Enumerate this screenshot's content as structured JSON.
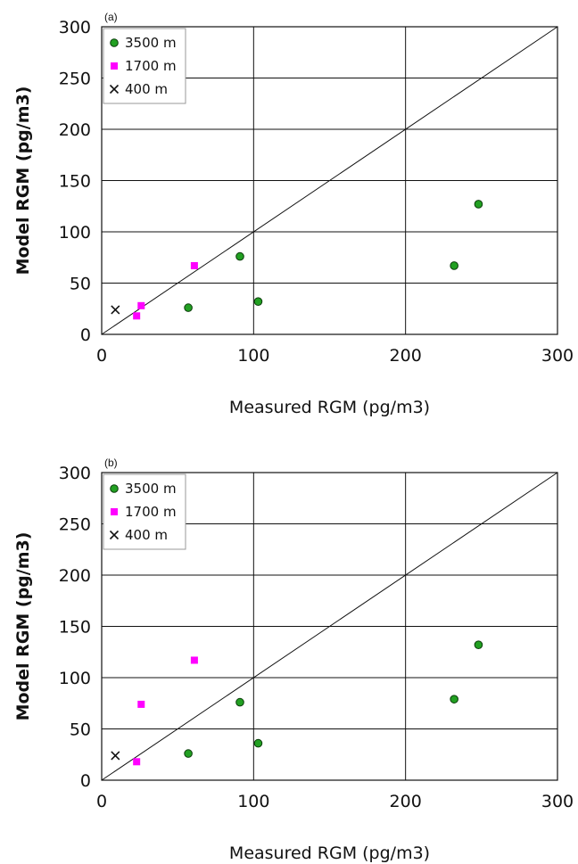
{
  "chart_data": [
    {
      "type": "scatter",
      "panel_label": "(a)",
      "xlabel": "Measured RGM (pg/m3)",
      "ylabel": "Model RGM (pg/m3)",
      "xlim": [
        0,
        300
      ],
      "ylim": [
        0,
        300
      ],
      "x_ticks": [
        "0",
        "100",
        "200",
        "300"
      ],
      "y_ticks": [
        "0",
        "50",
        "100",
        "150",
        "200",
        "250",
        "300"
      ],
      "grid": true,
      "reference_line": "1:1",
      "legend_position": "top-left",
      "series": [
        {
          "name": "3500 m",
          "marker": "circle",
          "color": "#22a022",
          "points": [
            [
              57,
              26
            ],
            [
              91,
              76
            ],
            [
              103,
              32
            ],
            [
              232,
              67
            ],
            [
              248,
              127
            ]
          ]
        },
        {
          "name": "1700 m",
          "marker": "square",
          "color": "#ff00ff",
          "points": [
            [
              23,
              18
            ],
            [
              26,
              28
            ],
            [
              61,
              67
            ]
          ]
        },
        {
          "name": "400 m",
          "marker": "x",
          "color": "#111111",
          "points": [
            [
              9,
              24
            ]
          ]
        }
      ]
    },
    {
      "type": "scatter",
      "panel_label": "(b)",
      "xlabel": "Measured RGM (pg/m3)",
      "ylabel": "Model RGM (pg/m3)",
      "xlim": [
        0,
        300
      ],
      "ylim": [
        0,
        300
      ],
      "x_ticks": [
        "0",
        "100",
        "200",
        "300"
      ],
      "y_ticks": [
        "0",
        "50",
        "100",
        "150",
        "200",
        "250",
        "300"
      ],
      "grid": true,
      "reference_line": "1:1",
      "legend_position": "top-left",
      "series": [
        {
          "name": "3500 m",
          "marker": "circle",
          "color": "#22a022",
          "points": [
            [
              57,
              26
            ],
            [
              91,
              76
            ],
            [
              103,
              36
            ],
            [
              232,
              79
            ],
            [
              248,
              132
            ]
          ]
        },
        {
          "name": "1700 m",
          "marker": "square",
          "color": "#ff00ff",
          "points": [
            [
              23,
              18
            ],
            [
              26,
              74
            ],
            [
              61,
              117
            ]
          ]
        },
        {
          "name": "400 m",
          "marker": "x",
          "color": "#111111",
          "points": [
            [
              9,
              24
            ]
          ]
        }
      ]
    }
  ]
}
